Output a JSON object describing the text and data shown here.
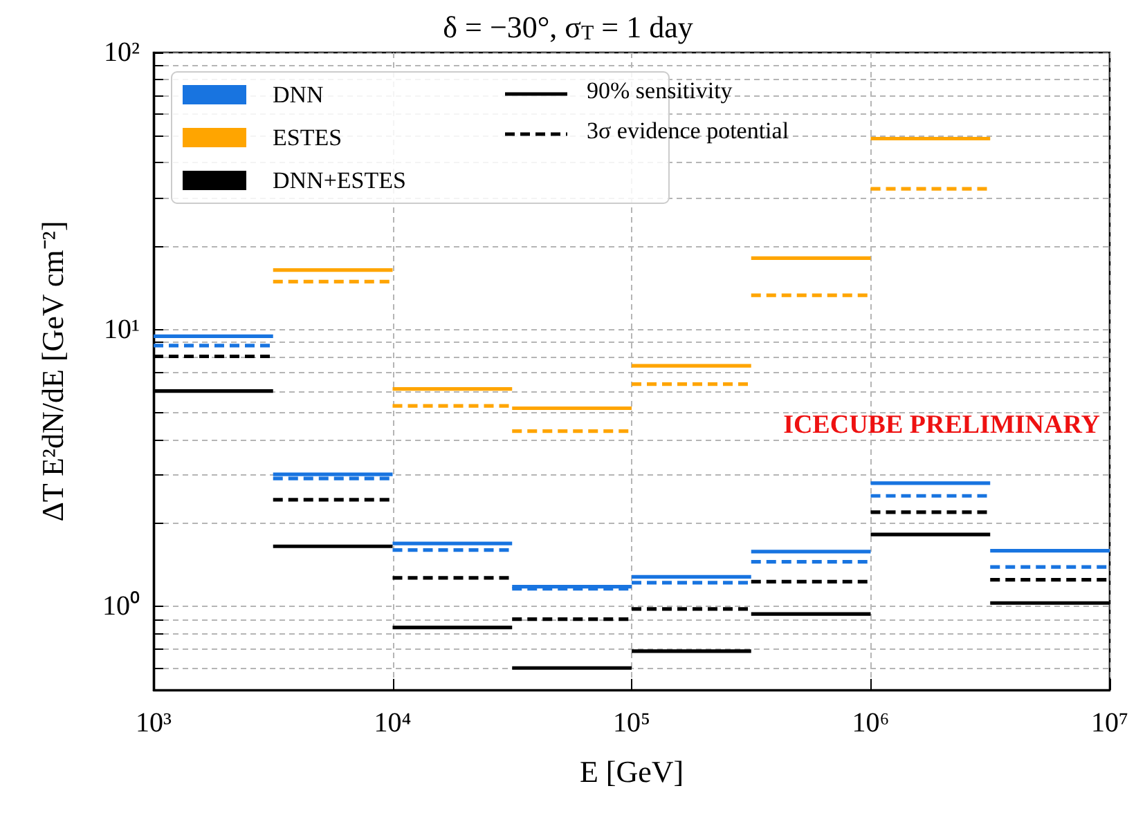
{
  "chart_data": {
    "type": "line",
    "title": "δ = −30°, σ$_{T}$ = 1 day",
    "xlabel": "E [GeV]",
    "ylabel": "ΔT E²dN/dE [GeV cm⁻²]",
    "log": "xy",
    "grid": true,
    "legend": "top left",
    "marker": "none",
    "xlim": [
      1000,
      10000000
    ],
    "xticks": [
      {
        "value": 1000,
        "label": "10³"
      },
      {
        "value": 10000,
        "label": "10⁴"
      },
      {
        "value": 100000,
        "label": "10⁵"
      },
      {
        "value": 1000000,
        "label": "10⁶"
      },
      {
        "value": 10000000,
        "label": "10⁷"
      }
    ],
    "ylim": [
      0.5,
      100
    ],
    "yticks": [
      {
        "value": 0.6,
        "label": null
      },
      {
        "value": 0.7,
        "label": null
      },
      {
        "value": 0.8,
        "label": null
      },
      {
        "value": 0.9,
        "label": null
      },
      {
        "value": 1,
        "label": "10⁰"
      },
      {
        "value": 2,
        "label": null
      },
      {
        "value": 3,
        "label": null
      },
      {
        "value": 4,
        "label": null
      },
      {
        "value": 5,
        "label": null
      },
      {
        "value": 6,
        "label": null
      },
      {
        "value": 7,
        "label": null
      },
      {
        "value": 8,
        "label": null
      },
      {
        "value": 9,
        "label": null
      },
      {
        "value": 10,
        "label": "10¹"
      },
      {
        "value": 20,
        "label": null
      },
      {
        "value": 30,
        "label": null
      },
      {
        "value": 40,
        "label": null
      },
      {
        "value": 50,
        "label": null
      },
      {
        "value": 60,
        "label": null
      },
      {
        "value": 70,
        "label": null
      },
      {
        "value": 80,
        "label": null
      },
      {
        "value": 90,
        "label": null
      },
      {
        "value": 100,
        "label": "10²"
      }
    ],
    "annotations": [
      "90% sensitivity",
      "3σ evidence potential",
      "ICECUBE PRELIMINARY"
    ],
    "series": [
      {
        "name": "DNN",
        "color": "#1874e0",
        "line_style": "solid",
        "x": [
          1000,
          3162,
          null,
          3162,
          10000,
          null,
          10000,
          31623,
          null,
          31623,
          100000,
          null,
          100000,
          316228,
          null,
          316228,
          1000000,
          null,
          1000000,
          3162278,
          null,
          3162278,
          10000000
        ],
        "values": [
          9.46,
          9.46,
          null,
          3.0,
          3.0,
          null,
          1.69,
          1.69,
          null,
          1.18,
          1.18,
          null,
          1.28,
          1.28,
          null,
          1.58,
          1.58,
          null,
          2.79,
          2.79,
          null,
          1.59,
          1.59
        ]
      },
      {
        "name": "ESTES",
        "color": "#ffa500",
        "line_style": "solid",
        "x": [
          3162,
          10000,
          null,
          10000,
          31623,
          null,
          31623,
          100000,
          null,
          100000,
          316228,
          null,
          316228,
          1000000,
          null,
          1000000,
          3162278
        ],
        "values": [
          16.4,
          16.4,
          null,
          6.1,
          6.1,
          null,
          5.2,
          5.2,
          null,
          7.4,
          7.4,
          null,
          18.1,
          18.1,
          null,
          48.9,
          48.9
        ]
      },
      {
        "name": "DNN+ESTES",
        "color": "#000000",
        "line_style": "solid",
        "x": [
          1000,
          3162,
          null,
          3162,
          10000,
          null,
          10000,
          31623,
          null,
          31623,
          100000,
          null,
          100000,
          316228,
          null,
          316228,
          1000000,
          null,
          1000000,
          3162278,
          null,
          3162278,
          10000000
        ],
        "values": [
          6.0,
          6.0,
          null,
          1.65,
          1.65,
          null,
          0.84,
          0.84,
          null,
          0.6,
          0.6,
          null,
          0.69,
          0.69,
          null,
          0.94,
          0.94,
          null,
          1.82,
          1.82,
          null,
          1.03,
          1.03
        ]
      },
      {
        "color": "#1874e0",
        "line_style": "dashed",
        "x": [
          1000,
          3162,
          null,
          3162,
          10000,
          null,
          10000,
          31623,
          null,
          31623,
          100000,
          null,
          100000,
          316228,
          null,
          316228,
          1000000,
          null,
          1000000,
          3162278,
          null,
          3162278,
          10000000
        ],
        "values": [
          8.75,
          8.75,
          null,
          2.9,
          2.9,
          null,
          1.6,
          1.6,
          null,
          1.16,
          1.16,
          null,
          1.22,
          1.22,
          null,
          1.45,
          1.45,
          null,
          2.51,
          2.51,
          null,
          1.39,
          1.39
        ]
      },
      {
        "color": "#ffa500",
        "line_style": "dashed",
        "x": [
          3162,
          10000,
          null,
          10000,
          31623,
          null,
          31623,
          100000,
          null,
          100000,
          316228,
          null,
          316228,
          1000000,
          null,
          1000000,
          3162278
        ],
        "values": [
          14.9,
          14.9,
          null,
          5.3,
          5.3,
          null,
          4.3,
          4.3,
          null,
          6.35,
          6.35,
          null,
          13.3,
          13.3,
          null,
          32.2,
          32.2
        ]
      },
      {
        "color": "#000000",
        "line_style": "dashed",
        "x": [
          1000,
          3162,
          null,
          3162,
          10000,
          null,
          10000,
          31623,
          null,
          31623,
          100000,
          null,
          100000,
          316228,
          null,
          316228,
          1000000,
          null,
          1000000,
          3162278,
          null,
          3162278,
          10000000
        ],
        "values": [
          8.0,
          8.0,
          null,
          2.43,
          2.43,
          null,
          1.27,
          1.27,
          null,
          0.9,
          0.9,
          null,
          0.98,
          0.98,
          null,
          1.23,
          1.23,
          null,
          2.19,
          2.19,
          null,
          1.25,
          1.25
        ]
      }
    ]
  }
}
